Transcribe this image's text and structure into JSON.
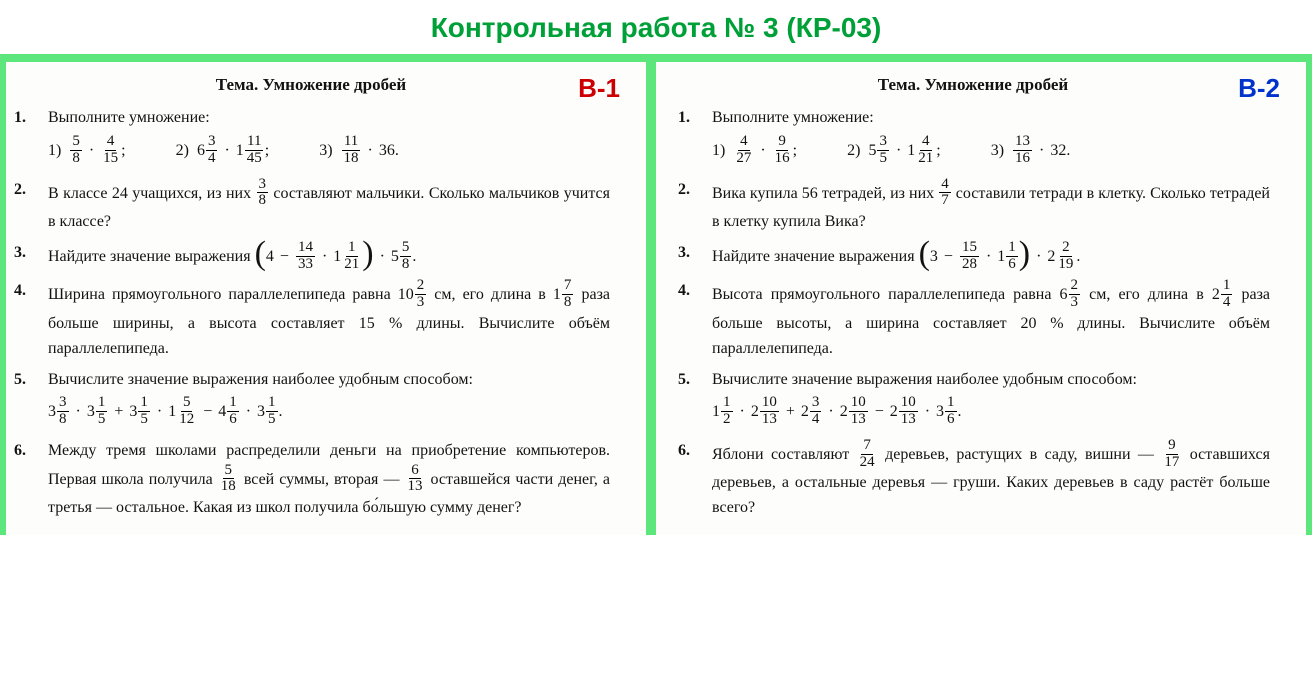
{
  "title": "Контрольная работа № 3 (КР-03)",
  "colors": {
    "title": "#00a038",
    "accent_border": "#5ce67c",
    "v1": "#cc0000",
    "v2": "#0033cc",
    "text": "#121212",
    "background": "#fdfdfc"
  },
  "typography": {
    "title_family": "Arial",
    "title_size_pt": 21,
    "title_weight": "bold",
    "body_family": "Georgia / Times",
    "body_size_pt": 12,
    "theme_weight": "bold",
    "variant_size_pt": 20
  },
  "variants": {
    "v1": {
      "badge": "В-1",
      "theme": "Тема. Умножение дробей",
      "tasks": {
        "1": {
          "num": "1.",
          "prompt": "Выполните умножение:",
          "items": {
            "a": {
              "label": "1)",
              "frac1": {
                "n": "5",
                "d": "8"
              },
              "op": "·",
              "frac2": {
                "n": "4",
                "d": "15"
              },
              "tail": ";"
            },
            "b": {
              "label": "2)",
              "mixed1": {
                "w": "6",
                "n": "3",
                "d": "4"
              },
              "op": "·",
              "mixed2": {
                "w": "1",
                "n": "11",
                "d": "45"
              },
              "tail": ";"
            },
            "c": {
              "label": "3)",
              "frac1": {
                "n": "11",
                "d": "18"
              },
              "op": "·",
              "int": "36",
              "tail": "."
            }
          }
        },
        "2": {
          "num": "2.",
          "text_before": "В классе 24 учащихся, из них ",
          "frac": {
            "n": "3",
            "d": "8"
          },
          "text_after": " составляют мальчики. Сколько мальчиков учится в классе?"
        },
        "3": {
          "num": "3.",
          "text": "Найдите значение выражения ",
          "expr": {
            "paren_a": "4",
            "minus": "−",
            "frac1": {
              "n": "14",
              "d": "33"
            },
            "dot1": "·",
            "mixed1": {
              "w": "1",
              "n": "1",
              "d": "21"
            },
            "dot2": "·",
            "mixed2": {
              "w": "5",
              "n": "5",
              "d": "8"
            },
            "tail": "."
          }
        },
        "4": {
          "num": "4.",
          "line1_a": "Ширина прямоугольного параллелепипеда равна ",
          "mixed1": {
            "w": "10",
            "n": "2",
            "d": "3"
          },
          "line1_b": " см, его длина в ",
          "mixed2": {
            "w": "1",
            "n": "7",
            "d": "8"
          },
          "line1_c": " раза больше ширины, а высота составляет 15 % длины. Вычислите объём параллелепипеда."
        },
        "5": {
          "num": "5.",
          "prompt": "Вычислите значение выражения наиболее удобным способом:",
          "expr": {
            "m1": {
              "w": "3",
              "n": "3",
              "d": "8"
            },
            "d1": "·",
            "m2": {
              "w": "3",
              "n": "1",
              "d": "5"
            },
            "p1": "+",
            "m3": {
              "w": "3",
              "n": "1",
              "d": "5"
            },
            "d2": "·",
            "m4": {
              "w": "1",
              "n": "5",
              "d": "12"
            },
            "mns": "−",
            "m5": {
              "w": "4",
              "n": "1",
              "d": "6"
            },
            "d3": "·",
            "m6": {
              "w": "3",
              "n": "1",
              "d": "5"
            },
            "tail": "."
          }
        },
        "6": {
          "num": "6.",
          "a": "Между тремя школами распределили деньги на приобретение компьютеров. Первая школа получила ",
          "f1": {
            "n": "5",
            "d": "18"
          },
          "b": " всей суммы, вторая — ",
          "f2": {
            "n": "6",
            "d": "13"
          },
          "c": " оставшейся части денег, а третья — остальное. Какая из школ получила бо́льшую сумму денег?"
        }
      }
    },
    "v2": {
      "badge": "В-2",
      "theme": "Тема. Умножение дробей",
      "tasks": {
        "1": {
          "num": "1.",
          "prompt": "Выполните умножение:",
          "items": {
            "a": {
              "label": "1)",
              "frac1": {
                "n": "4",
                "d": "27"
              },
              "op": "·",
              "frac2": {
                "n": "9",
                "d": "16"
              },
              "tail": ";"
            },
            "b": {
              "label": "2)",
              "mixed1": {
                "w": "5",
                "n": "3",
                "d": "5"
              },
              "op": "·",
              "mixed2": {
                "w": "1",
                "n": "4",
                "d": "21"
              },
              "tail": ";"
            },
            "c": {
              "label": "3)",
              "frac1": {
                "n": "13",
                "d": "16"
              },
              "op": "·",
              "int": "32",
              "tail": "."
            }
          }
        },
        "2": {
          "num": "2.",
          "text_before": "Вика купила 56 тетрадей, из них ",
          "frac": {
            "n": "4",
            "d": "7"
          },
          "text_after": " составили тетради в клетку. Сколько тетрадей в клетку купила Вика?"
        },
        "3": {
          "num": "3.",
          "text": "Найдите значение выражения ",
          "expr": {
            "paren_a": "3",
            "minus": "−",
            "frac1": {
              "n": "15",
              "d": "28"
            },
            "dot1": "·",
            "mixed1": {
              "w": "1",
              "n": "1",
              "d": "6"
            },
            "dot2": "·",
            "mixed2": {
              "w": "2",
              "n": "2",
              "d": "19"
            },
            "tail": "."
          }
        },
        "4": {
          "num": "4.",
          "line1_a": "Высота прямоугольного параллелепипеда равна ",
          "mixed1": {
            "w": "6",
            "n": "2",
            "d": "3"
          },
          "line1_b": " см, его длина в ",
          "mixed2": {
            "w": "2",
            "n": "1",
            "d": "4"
          },
          "line1_c": " раза больше высоты, а ширина составляет 20 % длины. Вычислите объём параллелепипеда."
        },
        "5": {
          "num": "5.",
          "prompt": "Вычислите значение выражения наиболее удобным способом:",
          "expr": {
            "m1": {
              "w": "1",
              "n": "1",
              "d": "2"
            },
            "d1": "·",
            "m2": {
              "w": "2",
              "n": "10",
              "d": "13"
            },
            "p1": "+",
            "m3": {
              "w": "2",
              "n": "3",
              "d": "4"
            },
            "d2": "·",
            "m4": {
              "w": "2",
              "n": "10",
              "d": "13"
            },
            "mns": "−",
            "m5": {
              "w": "2",
              "n": "10",
              "d": "13"
            },
            "d3": "·",
            "m6": {
              "w": "3",
              "n": "1",
              "d": "6"
            },
            "tail": "."
          }
        },
        "6": {
          "num": "6.",
          "a": "Яблони составляют ",
          "f1": {
            "n": "7",
            "d": "24"
          },
          "b": " деревьев, растущих в саду, вишни — ",
          "f2": {
            "n": "9",
            "d": "17"
          },
          "c": " оставшихся деревьев, а остальные деревья — груши. Каких деревьев в саду растёт больше всего?"
        }
      }
    }
  }
}
